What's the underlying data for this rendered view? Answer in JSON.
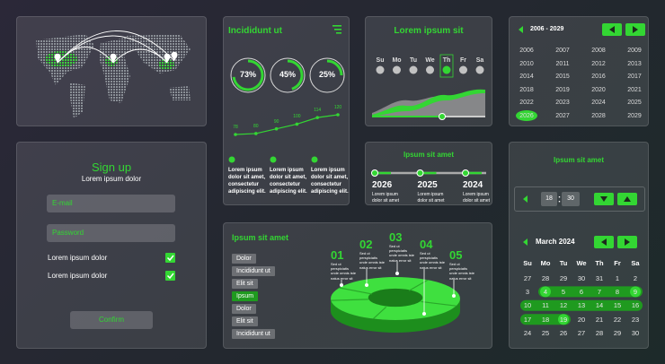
{
  "stats": {
    "title": "Incididunt ut",
    "rings": [
      {
        "value": 73,
        "label": "73%"
      },
      {
        "value": 45,
        "label": "45%"
      },
      {
        "value": 25,
        "label": "25%"
      }
    ],
    "trend": [
      78,
      80,
      90,
      100,
      114,
      120
    ],
    "notes": [
      "Lorem ipsum dolor sit amet, consectetur adipiscing elit.",
      "Lorem ipsum dolor sit amet, consectetur adipiscing elit.",
      "Lorem ipsum dolor sit amet, consectetur adipiscing elit."
    ]
  },
  "week": {
    "title": "Lorem ipsum sit",
    "days": [
      "Su",
      "Mo",
      "Tu",
      "We",
      "Th",
      "Fr",
      "Sa"
    ]
  },
  "years": {
    "range": "2006 - 2029",
    "items": [
      2006,
      2007,
      2008,
      2009,
      2010,
      2011,
      2012,
      2013,
      2014,
      2015,
      2016,
      2017,
      2018,
      2019,
      2020,
      2021,
      2022,
      2023,
      2024,
      2025,
      2026,
      2027,
      2028,
      2029
    ]
  },
  "signup": {
    "title": "Sign up",
    "subtitle": "Lorem ipsum dolor",
    "email": "E-mail",
    "password": "Password",
    "options": [
      "Lorem ipsum dolor",
      "Lorem ipsum dolor"
    ],
    "button": "Confirm"
  },
  "timeline": {
    "title": "Ipsum sit amet",
    "items": [
      {
        "year": 2026,
        "text": "Lorem ipsum dolor sit amet"
      },
      {
        "year": 2025,
        "text": "Lorem ipsum dolor sit amet"
      },
      {
        "year": 2024,
        "text": "Lorem ipsum dolor sit amet"
      }
    ]
  },
  "segments": {
    "title": "Ipsum sit amet",
    "tags": [
      "Dolor",
      "Incididunt ut",
      "Elit sit",
      "Ipsum",
      "Dolor",
      "Elit sit",
      "Incididunt ut"
    ],
    "steps": [
      {
        "number": "01",
        "text": "Sed ut perspiciatis unde omnis iste natus error sit"
      },
      {
        "number": "02",
        "text": "Sed ut perspiciatis unde omnis iste natus error sit"
      },
      {
        "number": "03",
        "text": "Sed ut perspiciatis unde omnis iste natus error sit"
      },
      {
        "number": "04",
        "text": "Sed ut perspiciatis unde omnis iste natus error sit"
      },
      {
        "number": "05",
        "text": "Sed ut perspiciatis unde omnis iste natus error sit"
      }
    ]
  },
  "calendar": {
    "title": "Ipsum sit amet",
    "hour": "18",
    "minute": "30",
    "month": "March 2024",
    "weekdays": [
      "Su",
      "Mo",
      "Tu",
      "We",
      "Th",
      "Fr",
      "Sa"
    ],
    "weeks": [
      [
        27,
        28,
        29,
        30,
        31,
        1,
        2
      ],
      [
        3,
        4,
        5,
        6,
        7,
        8,
        9
      ],
      [
        10,
        11,
        12,
        13,
        14,
        15,
        16
      ],
      [
        17,
        18,
        19,
        20,
        21,
        22,
        23
      ],
      [
        24,
        25,
        26,
        27,
        28,
        29,
        30
      ]
    ]
  }
}
